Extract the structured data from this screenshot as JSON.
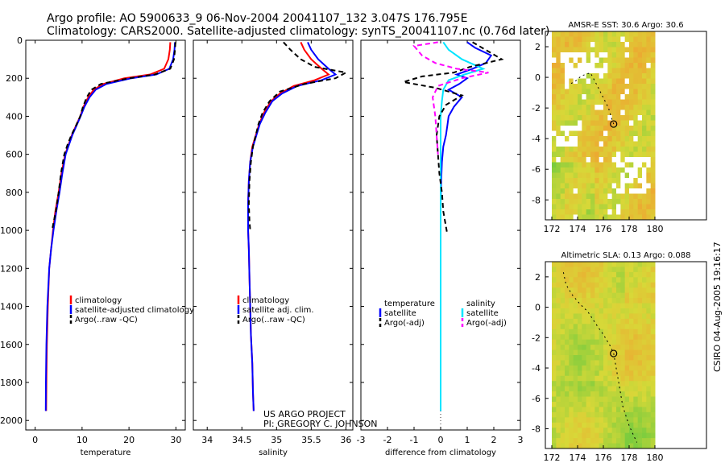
{
  "header": {
    "line1": "Argo profile: AO 5900633_9 06-Nov-2004 20041107_132 3.047S 176.795E",
    "line2": "Climatology: CARS2000. Satellite-adjusted climatology: synTS_20041107.nc (0.76d later)"
  },
  "credit": {
    "line1": "US ARGO PROJECT",
    "line2": "PI: GREGORY C. JOHNSON"
  },
  "timestamp": "CSIRO 04-Aug-2005 19:16:17",
  "colors": {
    "climatology": "#ff0000",
    "satellite": "#0000ff",
    "argo": "#000000",
    "satellite_salinity": "#00e5ff",
    "argo_salinity": "#ff00ff",
    "map_warm": "#f0a030",
    "map_mid": "#d8d838",
    "map_cool": "#5cc840"
  },
  "chart_data": [
    {
      "id": "temperature",
      "type": "line",
      "xlabel": "temperature",
      "ylabel": "",
      "xlim": [
        -2,
        32
      ],
      "ylim": [
        2050,
        0
      ],
      "xticks": [
        0,
        10,
        20,
        30
      ],
      "yticks": [
        0,
        200,
        400,
        600,
        800,
        1000,
        1200,
        1400,
        1600,
        1800,
        2000
      ],
      "legend": [
        "climatology",
        "satellite-adjusted climatology",
        "Argo(..raw -QC)"
      ],
      "series": [
        {
          "name": "climatology",
          "color": "#ff0000",
          "dash": "",
          "x": [
            28.8,
            28.7,
            28.4,
            27.5,
            24.5,
            19.0,
            14.5,
            12.5,
            11.3,
            10.3,
            9.6,
            8.7,
            7.8,
            7.1,
            6.4,
            5.6,
            5.0,
            4.3,
            3.8,
            3.4,
            3.0,
            2.7,
            2.5,
            2.4,
            2.35
          ],
          "y": [
            10,
            50,
            100,
            150,
            180,
            200,
            230,
            260,
            300,
            350,
            400,
            450,
            500,
            550,
            600,
            700,
            800,
            900,
            1000,
            1100,
            1200,
            1400,
            1600,
            1800,
            1950
          ]
        },
        {
          "name": "satellite-adjusted climatology",
          "color": "#0000ff",
          "dash": "",
          "x": [
            29.8,
            29.7,
            29.4,
            28.6,
            25.8,
            20.5,
            15.2,
            12.9,
            11.6,
            10.5,
            9.7,
            8.8,
            7.9,
            7.2,
            6.5,
            5.8,
            5.2,
            4.5,
            3.9,
            3.4,
            3.0,
            2.6,
            2.4,
            2.3,
            2.25
          ],
          "y": [
            10,
            50,
            100,
            150,
            180,
            200,
            230,
            260,
            300,
            350,
            400,
            450,
            500,
            550,
            600,
            700,
            800,
            900,
            1000,
            1100,
            1200,
            1400,
            1600,
            1800,
            1950
          ]
        },
        {
          "name": "Argo(..raw -QC)",
          "color": "#000000",
          "dash": "6,4",
          "x": [
            29.9,
            29.8,
            29.6,
            28.8,
            25.5,
            20.0,
            14.0,
            12.0,
            11.0,
            10.2,
            9.6,
            8.7,
            7.7,
            6.9,
            6.2,
            5.5,
            5.0,
            4.4,
            4.0,
            3.6
          ],
          "y": [
            10,
            50,
            100,
            150,
            180,
            200,
            230,
            260,
            300,
            350,
            400,
            450,
            500,
            550,
            600,
            700,
            800,
            900,
            950,
            1000
          ]
        }
      ]
    },
    {
      "id": "salinity",
      "type": "line",
      "xlabel": "salinity",
      "ylabel": "",
      "xlim": [
        33.8,
        36.1
      ],
      "ylim": [
        2050,
        0
      ],
      "xticks": [
        34,
        34.5,
        35,
        35.5,
        36
      ],
      "yticks": [
        0,
        200,
        400,
        600,
        800,
        1000,
        1200,
        1400,
        1600,
        1800,
        2000
      ],
      "legend": [
        "climatology",
        "satellite adj. clim.",
        "Argo(..raw -QC)"
      ],
      "series": [
        {
          "name": "climatology",
          "color": "#ff0000",
          "dash": "",
          "x": [
            35.35,
            35.4,
            35.5,
            35.65,
            35.75,
            35.55,
            35.25,
            35.05,
            34.92,
            34.82,
            34.75,
            34.7,
            34.65,
            34.62,
            34.6,
            34.59,
            34.59,
            34.6,
            34.61,
            34.62,
            34.63,
            34.65,
            34.66,
            34.67
          ],
          "y": [
            10,
            50,
            100,
            150,
            180,
            210,
            240,
            280,
            320,
            380,
            440,
            500,
            560,
            640,
            740,
            860,
            1000,
            1100,
            1250,
            1400,
            1550,
            1700,
            1850,
            1950
          ]
        },
        {
          "name": "satellite adj. clim.",
          "color": "#0000ff",
          "dash": "",
          "x": [
            35.45,
            35.5,
            35.6,
            35.75,
            35.85,
            35.65,
            35.3,
            35.08,
            34.94,
            34.84,
            34.76,
            34.71,
            34.66,
            34.62,
            34.6,
            34.59,
            34.59,
            34.6,
            34.61,
            34.62,
            34.63,
            34.65,
            34.66,
            34.67
          ],
          "y": [
            10,
            50,
            100,
            150,
            180,
            210,
            240,
            280,
            320,
            380,
            440,
            500,
            560,
            640,
            740,
            860,
            1000,
            1100,
            1250,
            1400,
            1550,
            1700,
            1850,
            1950
          ]
        },
        {
          "name": "Argo(..raw -QC)",
          "color": "#000000",
          "dash": "6,4",
          "x": [
            35.1,
            35.2,
            35.35,
            35.55,
            36.0,
            35.85,
            35.4,
            35.05,
            34.9,
            34.8,
            34.74,
            34.7,
            34.66,
            34.63,
            34.61,
            34.6,
            34.61,
            34.62
          ],
          "y": [
            10,
            50,
            100,
            140,
            170,
            200,
            230,
            270,
            320,
            380,
            440,
            500,
            560,
            640,
            740,
            860,
            950,
            1000
          ]
        }
      ]
    },
    {
      "id": "difference",
      "type": "line",
      "xlabel": "difference from climatology",
      "ylabel": "",
      "xlim": [
        -3,
        3
      ],
      "ylim": [
        2050,
        0
      ],
      "xticks": [
        -3,
        -2,
        -1,
        0,
        1,
        2,
        3
      ],
      "yticks": [
        0,
        200,
        400,
        600,
        800,
        1000,
        1200,
        1400,
        1600,
        1800,
        2000
      ],
      "legend_left": [
        "temperature",
        "satellite",
        "Argo(-adj)"
      ],
      "legend_right": [
        "salinity",
        "satellite",
        "Argo(-adj)"
      ],
      "series": [
        {
          "name": "temperature satellite",
          "color": "#0000ff",
          "dash": "",
          "x": [
            1.0,
            1.3,
            1.9,
            1.7,
            1.2,
            0.6,
            1.0,
            0.7,
            0.3,
            0.8,
            0.5,
            0.3,
            0.25,
            0.2,
            0.1,
            0.05,
            0.02,
            0.0,
            0.0,
            0.0,
            0.0,
            0.0
          ],
          "y": [
            10,
            40,
            80,
            120,
            150,
            180,
            200,
            230,
            260,
            300,
            350,
            400,
            450,
            500,
            560,
            640,
            740,
            860,
            1000,
            1200,
            1600,
            1950
          ]
        },
        {
          "name": "salinity satellite",
          "color": "#00e5ff",
          "dash": "",
          "x": [
            0.1,
            0.3,
            0.8,
            1.6,
            0.9,
            0.3,
            0.1,
            0.05,
            0.0,
            0.0,
            0.0,
            0.0,
            0.0
          ],
          "y": [
            10,
            50,
            100,
            150,
            180,
            210,
            260,
            320,
            400,
            600,
            1000,
            1500,
            1950
          ]
        },
        {
          "name": "temperature Argo(-adj)",
          "color": "#000000",
          "dash": "6,4",
          "x": [
            1.2,
            2.3,
            1.1,
            0.5,
            -0.7,
            -1.4,
            -0.2,
            0.8,
            0.2,
            -0.05,
            -0.15,
            -0.1,
            -0.05,
            0.05,
            0.1,
            0.2,
            0.25
          ],
          "y": [
            10,
            100,
            140,
            170,
            190,
            220,
            250,
            290,
            340,
            400,
            500,
            600,
            700,
            800,
            900,
            980,
            1020
          ]
        },
        {
          "name": "salinity Argo(-adj)",
          "color": "#ff00ff",
          "dash": "6,4",
          "x": [
            -0.1,
            -1.0,
            -0.7,
            -0.2,
            0.6,
            1.8,
            0.8,
            -0.1,
            -0.3,
            -0.2,
            -0.15,
            -0.1
          ],
          "y": [
            10,
            30,
            80,
            120,
            150,
            170,
            200,
            240,
            300,
            400,
            500,
            600
          ]
        }
      ]
    },
    {
      "id": "sst_map",
      "type": "heatmap",
      "title": "AMSR-E SST: 30.6 Argo: 30.6",
      "xlim": [
        171.5,
        184
      ],
      "ylim": [
        -9.3,
        3
      ],
      "xticks": [
        172,
        174,
        176,
        178,
        180
      ],
      "yticks": [
        -8,
        -6,
        -4,
        -2,
        0,
        2
      ],
      "data_extent_x": [
        172,
        180
      ],
      "marker": {
        "lon": 176.795,
        "lat": -3.047
      },
      "track": {
        "lon": [
          173.5,
          173.9,
          174.3,
          175.0,
          175.5,
          175.8,
          176.1,
          176.4,
          176.6,
          176.8
        ],
        "lat": [
          -0.4,
          -0.2,
          0.1,
          0.3,
          -0.5,
          -1.0,
          -1.5,
          -2.0,
          -2.6,
          -3.05
        ]
      }
    },
    {
      "id": "sla_map",
      "type": "heatmap",
      "title": "Altimetric SLA: 0.13 Argo: 0.088",
      "xlim": [
        171.5,
        184
      ],
      "ylim": [
        -9.3,
        3
      ],
      "xticks": [
        172,
        174,
        176,
        178,
        180
      ],
      "yticks": [
        -8,
        -6,
        -4,
        -2,
        0,
        2
      ],
      "data_extent_x": [
        172,
        180
      ],
      "marker": {
        "lon": 176.795,
        "lat": -3.047
      },
      "track": {
        "lon": [
          172.9,
          173.1,
          173.6,
          174.2,
          174.8,
          175.5,
          176.0,
          176.5,
          176.8,
          177.2,
          177.5,
          178.0,
          178.6
        ],
        "lat": [
          2.3,
          1.5,
          0.8,
          0.2,
          -0.3,
          -1.2,
          -1.8,
          -2.5,
          -3.05,
          -5.0,
          -6.5,
          -7.8,
          -8.9
        ]
      }
    }
  ]
}
